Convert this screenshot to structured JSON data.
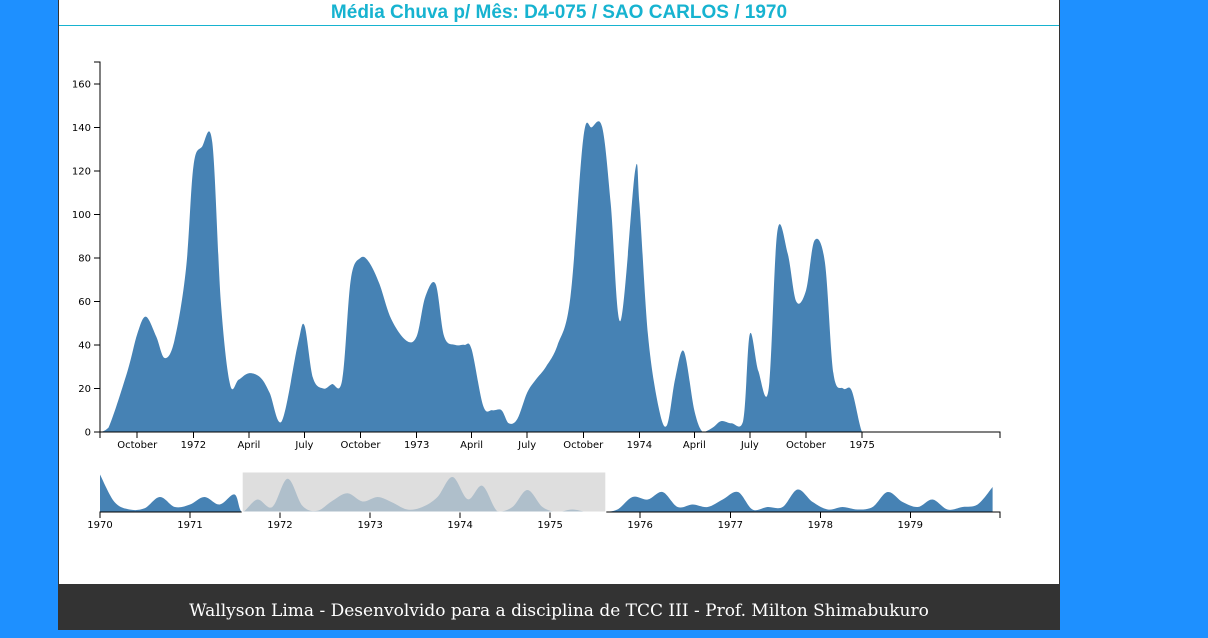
{
  "page": {
    "title": "Média Chuva p/ Mês: D4-075 / SAO CARLOS / 1970",
    "footer": "Wallyson Lima - Desenvolvido para a disciplina de TCC III - Prof. Milton Shimabukuro"
  },
  "colors": {
    "area": "#4682b4",
    "title": "#17b3d0",
    "brush": "#d3d3d3",
    "background": "#1e90ff",
    "footer_bg": "#333333"
  },
  "chart_data": [
    {
      "type": "area",
      "role": "focus",
      "title": "Média Chuva p/ Mês: D4-075 / SAO CARLOS / 1970",
      "xlabel": "",
      "ylabel": "",
      "ylim": [
        0,
        170
      ],
      "yticks": [
        0,
        20,
        40,
        60,
        80,
        100,
        120,
        140,
        160
      ],
      "xrange": [
        "1971-08-01",
        "1975-08-15"
      ],
      "xticks": [
        {
          "date": "1971-10-01",
          "label": "October"
        },
        {
          "date": "1972-01-01",
          "label": "1972"
        },
        {
          "date": "1972-04-01",
          "label": "April"
        },
        {
          "date": "1972-07-01",
          "label": "July"
        },
        {
          "date": "1972-10-01",
          "label": "October"
        },
        {
          "date": "1973-01-01",
          "label": "1973"
        },
        {
          "date": "1973-04-01",
          "label": "April"
        },
        {
          "date": "1973-07-01",
          "label": "July"
        },
        {
          "date": "1973-10-01",
          "label": "October"
        },
        {
          "date": "1974-01-01",
          "label": "1974"
        },
        {
          "date": "1974-04-01",
          "label": "April"
        },
        {
          "date": "1974-07-01",
          "label": "July"
        },
        {
          "date": "1974-10-01",
          "label": "October"
        },
        {
          "date": "1975-01-01",
          "label": "1975"
        }
      ],
      "grid": false,
      "x": [
        "1971-08-01",
        "1971-08-15",
        "1971-09-15",
        "1971-10-01",
        "1971-10-15",
        "1971-11-01",
        "1971-11-15",
        "1971-12-01",
        "1971-12-20",
        "1972-01-01",
        "1972-01-15",
        "1972-02-01",
        "1972-02-15",
        "1972-03-01",
        "1972-03-15",
        "1972-04-01",
        "1972-04-20",
        "1972-05-05",
        "1972-05-25",
        "1972-06-20",
        "1972-07-01",
        "1972-07-15",
        "1972-08-01",
        "1972-08-15",
        "1972-09-01",
        "1972-09-15",
        "1972-10-01",
        "1972-10-15",
        "1972-11-01",
        "1972-11-20",
        "1972-12-15",
        "1973-01-01",
        "1973-01-15",
        "1973-02-01",
        "1973-02-15",
        "1973-03-05",
        "1973-03-20",
        "1973-04-01",
        "1973-04-20",
        "1973-05-05",
        "1973-05-20",
        "1973-06-01",
        "1973-06-15",
        "1973-07-01",
        "1973-07-15",
        "1973-08-01",
        "1973-08-20",
        "1973-09-10",
        "1973-10-01",
        "1973-10-15",
        "1973-11-01",
        "1973-11-15",
        "1973-12-01",
        "1973-12-25",
        "1974-01-01",
        "1974-01-15",
        "1974-02-01",
        "1974-02-15",
        "1974-03-01",
        "1974-03-15",
        "1974-04-01",
        "1974-04-15",
        "1974-05-01",
        "1974-05-15",
        "1974-06-01",
        "1974-06-20",
        "1974-07-01",
        "1974-07-15",
        "1974-08-01",
        "1974-08-15",
        "1974-09-01",
        "1974-09-15",
        "1974-10-01",
        "1974-10-15",
        "1974-11-01",
        "1974-11-15",
        "1974-12-01",
        "1974-12-15",
        "1975-01-01",
        "1975-01-15",
        "1975-02-01",
        "1975-02-15",
        "1975-03-01",
        "1975-03-15",
        "1975-04-01",
        "1975-04-15",
        "1975-05-01",
        "1975-05-15",
        "1975-06-01",
        "1975-06-15",
        "1975-07-01",
        "1975-07-15",
        "1975-08-01",
        "1975-08-15"
      ],
      "values": [
        0,
        2,
        28,
        45,
        53,
        44,
        34,
        42,
        75,
        122,
        131,
        133,
        60,
        22,
        24,
        27,
        25,
        18,
        5,
        40,
        49,
        25,
        20,
        22,
        24,
        70,
        80,
        78,
        68,
        52,
        42,
        44,
        62,
        68,
        44,
        40,
        40,
        38,
        12,
        10,
        10,
        4,
        6,
        18,
        24,
        30,
        40,
        62,
        135,
        140,
        140,
        105,
        51,
        120,
        105,
        45,
        12,
        3,
        25,
        37,
        10,
        0,
        2,
        5,
        4,
        5,
        45,
        28,
        20,
        92,
        82,
        60,
        65,
        88,
        78,
        27,
        20,
        19,
        0,
        0,
        0,
        0,
        0,
        0,
        0,
        0,
        0,
        0,
        0,
        0,
        0,
        0,
        0,
        0
      ]
    },
    {
      "type": "area",
      "role": "context",
      "xrange": [
        "1970-01-01",
        "1979-12-31"
      ],
      "xticks": [
        "1970",
        "1971",
        "1972",
        "1973",
        "1974",
        "1975",
        "1976",
        "1977",
        "1978",
        "1979"
      ],
      "brush": [
        "1971-08-01",
        "1975-08-15"
      ],
      "x": [
        "1970-01-01",
        "1970-03-01",
        "1970-05-01",
        "1970-07-01",
        "1970-09-01",
        "1970-11-01",
        "1971-01-01",
        "1971-03-01",
        "1971-05-01",
        "1971-07-01",
        "1971-08-01",
        "1971-10-01",
        "1971-12-01",
        "1972-02-01",
        "1972-04-01",
        "1972-06-01",
        "1972-08-01",
        "1972-10-01",
        "1972-12-01",
        "1973-02-01",
        "1973-04-01",
        "1973-06-01",
        "1973-08-01",
        "1973-10-01",
        "1973-12-01",
        "1974-02-01",
        "1974-04-01",
        "1974-06-01",
        "1974-08-01",
        "1974-10-01",
        "1974-12-01",
        "1975-02-01",
        "1975-04-01",
        "1975-06-01",
        "1975-08-01",
        "1975-10-01",
        "1975-12-01",
        "1976-02-01",
        "1976-04-01",
        "1976-06-01",
        "1976-08-01",
        "1976-10-01",
        "1976-12-01",
        "1977-02-01",
        "1977-04-01",
        "1977-06-01",
        "1977-08-01",
        "1977-10-01",
        "1977-12-01",
        "1978-02-01",
        "1978-04-01",
        "1978-06-01",
        "1978-08-01",
        "1978-10-01",
        "1978-12-01",
        "1979-02-01",
        "1979-04-01",
        "1979-06-01",
        "1979-08-01",
        "1979-10-01",
        "1979-12-01"
      ],
      "values": [
        150,
        40,
        10,
        15,
        60,
        20,
        30,
        60,
        30,
        70,
        0,
        50,
        20,
        133,
        25,
        5,
        45,
        75,
        42,
        60,
        38,
        10,
        20,
        60,
        140,
        51,
        105,
        3,
        20,
        88,
        20,
        0,
        10,
        0,
        0,
        10,
        60,
        50,
        80,
        20,
        30,
        20,
        50,
        80,
        10,
        20,
        20,
        90,
        40,
        10,
        20,
        10,
        20,
        80,
        40,
        20,
        50,
        10,
        20,
        30,
        100
      ]
    }
  ]
}
